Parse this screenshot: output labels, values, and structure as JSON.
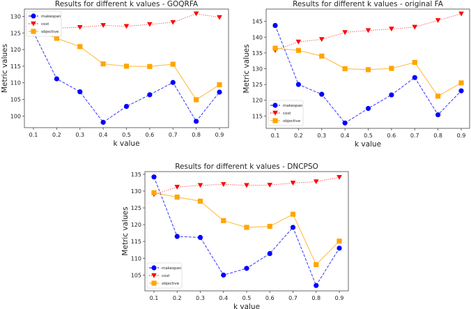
{
  "chart_data": [
    {
      "type": "line",
      "title": "Results for different k values - GOQRFA",
      "xlabel": "k value",
      "ylabel": "Metric values",
      "x": [
        0.1,
        0.2,
        0.3,
        0.4,
        0.5,
        0.6,
        0.7,
        0.8,
        0.9
      ],
      "xticks": [
        "0.1",
        "0.2",
        "0.3",
        "0.4",
        "0.5",
        "0.6",
        "0.7",
        "0.8",
        "0.9"
      ],
      "yticks": [
        100,
        105,
        110,
        115,
        120,
        125,
        130
      ],
      "ylim": [
        96.5,
        132.2
      ],
      "legend": "top-left",
      "grid": false,
      "series": [
        {
          "name": "makespan",
          "color": "#0000ff",
          "marker": "circle",
          "style": "dashed",
          "values": [
            125.2,
            111.2,
            107.3,
            98.1,
            102.9,
            106.4,
            110.1,
            98.4,
            107.2
          ]
        },
        {
          "name": "cost",
          "color": "#ff0000",
          "marker": "triangle-down",
          "style": "dotted",
          "values": [
            126.3,
            126.5,
            126.7,
            127.3,
            127.0,
            127.6,
            128.2,
            130.8,
            129.7
          ]
        },
        {
          "name": "objective",
          "color": "#ffa500",
          "marker": "square",
          "style": "solid",
          "values": [
            126.1,
            123.4,
            120.9,
            115.7,
            115.0,
            114.9,
            115.6,
            104.9,
            109.4
          ]
        }
      ]
    },
    {
      "type": "line",
      "title": "Results for different k values - original FA",
      "xlabel": "k value",
      "ylabel": "Metric values",
      "x": [
        0.1,
        0.2,
        0.3,
        0.4,
        0.5,
        0.6,
        0.7,
        0.8,
        0.9
      ],
      "xticks": [
        "0.1",
        "0.2",
        "0.3",
        "0.4",
        "0.5",
        "0.6",
        "0.7",
        "0.8",
        "0.9"
      ],
      "yticks": [
        115,
        120,
        125,
        130,
        135,
        140,
        145
      ],
      "ylim": [
        111.1,
        148.9
      ],
      "legend": "lower-left",
      "grid": false,
      "series": [
        {
          "name": "makespan",
          "color": "#0000ff",
          "marker": "circle",
          "style": "dashed",
          "values": [
            143.7,
            125.0,
            121.9,
            112.8,
            117.4,
            121.7,
            127.2,
            115.4,
            123.0
          ]
        },
        {
          "name": "cost",
          "color": "#ff0000",
          "marker": "triangle-down",
          "style": "dotted",
          "values": [
            135.8,
            138.5,
            139.3,
            141.5,
            142.1,
            142.6,
            143.2,
            145.3,
            147.4
          ]
        },
        {
          "name": "objective",
          "color": "#ffa500",
          "marker": "square",
          "style": "solid",
          "values": [
            136.5,
            135.8,
            134.0,
            130.0,
            129.7,
            130.1,
            132.0,
            121.3,
            125.5
          ]
        }
      ]
    },
    {
      "type": "line",
      "title": "Results for different k values - DNCPSO",
      "xlabel": "k value",
      "ylabel": "Metric values",
      "x": [
        0.1,
        0.2,
        0.3,
        0.4,
        0.5,
        0.6,
        0.7,
        0.8,
        0.9
      ],
      "xticks": [
        "0.1",
        "0.2",
        "0.3",
        "0.4",
        "0.5",
        "0.6",
        "0.7",
        "0.8",
        "0.9"
      ],
      "yticks": [
        105,
        110,
        115,
        120,
        125,
        130,
        135
      ],
      "ylim": [
        100.3,
        135.8
      ],
      "legend": "lower-left",
      "grid": false,
      "series": [
        {
          "name": "makespan",
          "color": "#0000ff",
          "marker": "circle",
          "style": "dashed",
          "values": [
            134.2,
            116.5,
            116.2,
            105.0,
            107.0,
            111.4,
            119.2,
            101.9,
            113.0
          ]
        },
        {
          "name": "cost",
          "color": "#ff0000",
          "marker": "triangle-down",
          "style": "dotted",
          "values": [
            129.0,
            131.2,
            131.7,
            132.0,
            131.7,
            131.8,
            132.4,
            132.8,
            134.1
          ]
        },
        {
          "name": "objective",
          "color": "#ffa500",
          "marker": "square",
          "style": "solid",
          "values": [
            129.5,
            128.2,
            127.0,
            121.2,
            119.2,
            119.5,
            123.1,
            108.1,
            115.1
          ]
        }
      ]
    }
  ]
}
